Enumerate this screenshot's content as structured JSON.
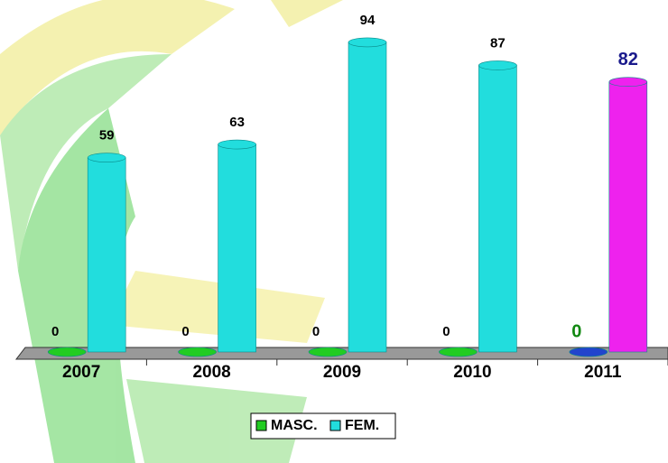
{
  "chart_data": {
    "type": "bar3d",
    "categories": [
      "2007",
      "2008",
      "2009",
      "2010",
      "2011"
    ],
    "series": [
      {
        "name": "MASC.",
        "color": "#22cc22",
        "values": [
          0,
          0,
          0,
          0,
          0
        ],
        "colors": [
          "#22cc22",
          "#22cc22",
          "#22cc22",
          "#22cc22",
          "#2244cc"
        ],
        "label_colors": [
          "#000000",
          "#000000",
          "#000000",
          "#000000",
          "#118811"
        ]
      },
      {
        "name": "FEM.",
        "color": "#22dddd",
        "values": [
          59,
          63,
          94,
          87,
          82
        ],
        "colors": [
          "#22dddd",
          "#22dddd",
          "#22dddd",
          "#22dddd",
          "#ee22ee"
        ],
        "label_colors": [
          "#000000",
          "#000000",
          "#000000",
          "#000000",
          "#1a1a8c"
        ]
      }
    ],
    "ylim": [
      0,
      100
    ]
  }
}
